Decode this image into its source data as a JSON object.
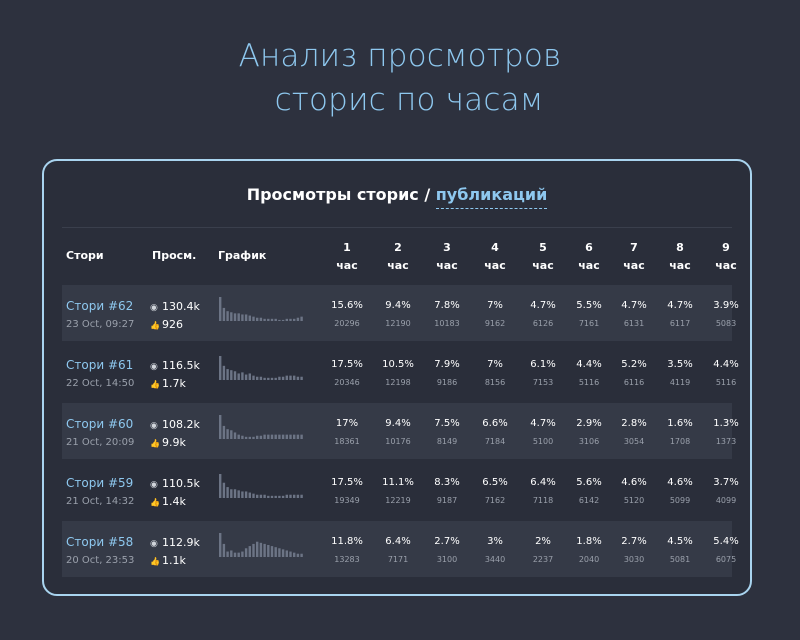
{
  "hero": {
    "line1": "Анализ просмотров",
    "line2": "сторис по часам"
  },
  "panel": {
    "title_main": "Просмотры сторис / ",
    "title_accent": "публикаций"
  },
  "headers": {
    "story": "Стори",
    "views": "Просм.",
    "chart": "График",
    "hours": [
      "1",
      "2",
      "3",
      "4",
      "5",
      "6",
      "7",
      "8",
      "9"
    ],
    "hour_unit": "час"
  },
  "icons": {
    "views": "eye-icon",
    "likes": "thumbs-up-icon"
  },
  "colors": {
    "bar": "#6c7485",
    "accent": "#8ec8ef"
  },
  "rows": [
    {
      "name": "Стори #62",
      "date": "23 Oct, 09:27",
      "views": "130.4k",
      "likes": "926",
      "pcts": [
        "15.6%",
        "9.4%",
        "7.8%",
        "7%",
        "4.7%",
        "5.5%",
        "4.7%",
        "4.7%",
        "3.9%"
      ],
      "counts": [
        "20296",
        "12190",
        "10183",
        "9162",
        "6126",
        "7161",
        "6131",
        "6117",
        "5083"
      ],
      "spark": [
        22,
        12,
        9,
        8,
        7,
        7,
        6,
        6,
        5,
        4,
        3,
        3,
        2,
        2,
        2,
        2,
        1,
        1,
        2,
        2,
        2,
        3,
        4
      ]
    },
    {
      "name": "Стори #61",
      "date": "22 Oct, 14:50",
      "views": "116.5k",
      "likes": "1.7k",
      "pcts": [
        "17.5%",
        "10.5%",
        "7.9%",
        "7%",
        "6.1%",
        "4.4%",
        "5.2%",
        "3.5%",
        "4.4%"
      ],
      "counts": [
        "20346",
        "12198",
        "9186",
        "8156",
        "7153",
        "5116",
        "6116",
        "4119",
        "5116"
      ],
      "spark": [
        22,
        13,
        10,
        9,
        8,
        6,
        7,
        5,
        6,
        4,
        3,
        3,
        2,
        2,
        2,
        2,
        3,
        3,
        4,
        4,
        4,
        3,
        3
      ]
    },
    {
      "name": "Стори #60",
      "date": "21 Oct, 20:09",
      "views": "108.2k",
      "likes": "9.9k",
      "pcts": [
        "17%",
        "9.4%",
        "7.5%",
        "6.6%",
        "4.7%",
        "2.9%",
        "2.8%",
        "1.6%",
        "1.3%"
      ],
      "counts": [
        "18361",
        "10176",
        "8149",
        "7184",
        "5100",
        "3106",
        "3054",
        "1708",
        "1373"
      ],
      "spark": [
        22,
        12,
        9,
        8,
        6,
        4,
        3,
        2,
        2,
        2,
        3,
        3,
        4,
        4,
        4,
        4,
        4,
        4,
        4,
        4,
        4,
        4,
        4
      ]
    },
    {
      "name": "Стори #59",
      "date": "21 Oct, 14:32",
      "views": "110.5k",
      "likes": "1.4k",
      "pcts": [
        "17.5%",
        "11.1%",
        "8.3%",
        "6.5%",
        "6.4%",
        "5.6%",
        "4.6%",
        "4.6%",
        "3.7%"
      ],
      "counts": [
        "19349",
        "12219",
        "9187",
        "7162",
        "7118",
        "6142",
        "5120",
        "5099",
        "4099"
      ],
      "spark": [
        22,
        14,
        10,
        8,
        8,
        7,
        6,
        6,
        5,
        4,
        3,
        3,
        3,
        2,
        2,
        2,
        2,
        2,
        3,
        3,
        3,
        3,
        3
      ]
    },
    {
      "name": "Стори #58",
      "date": "20 Oct, 23:53",
      "views": "112.9k",
      "likes": "1.1k",
      "pcts": [
        "11.8%",
        "6.4%",
        "2.7%",
        "3%",
        "2%",
        "1.8%",
        "2.7%",
        "4.5%",
        "5.4%"
      ],
      "counts": [
        "13283",
        "7171",
        "3100",
        "3440",
        "2237",
        "2040",
        "3030",
        "5081",
        "6075"
      ],
      "spark": [
        22,
        12,
        5,
        6,
        4,
        4,
        5,
        8,
        10,
        12,
        14,
        13,
        12,
        11,
        10,
        9,
        8,
        7,
        6,
        5,
        4,
        3,
        3
      ]
    }
  ]
}
